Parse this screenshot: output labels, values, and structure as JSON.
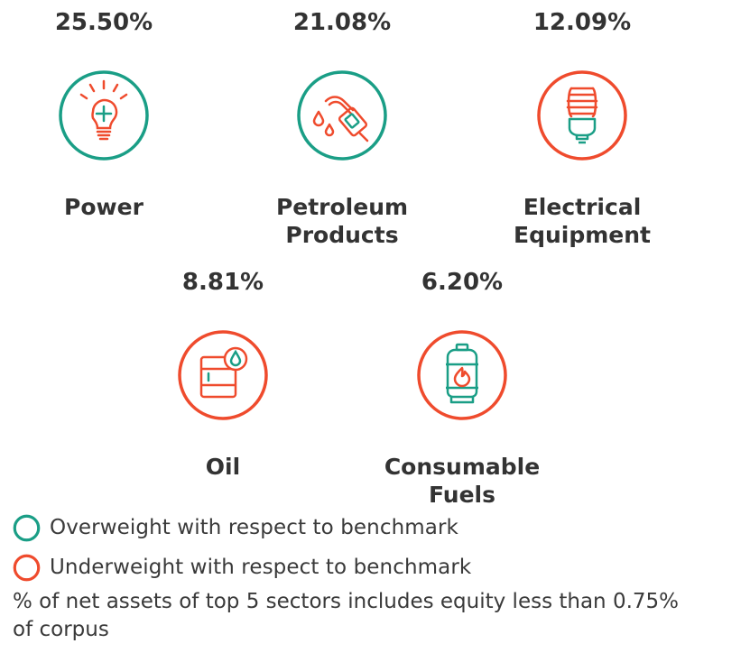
{
  "colors": {
    "overweight": "#1a9e86",
    "underweight": "#ef4b2d"
  },
  "sectors": [
    {
      "percent": "25.50%",
      "name": "Power",
      "icon": "lightbulb-icon",
      "weight": "overweight"
    },
    {
      "percent": "21.08%",
      "name": "Petroleum Products",
      "icon": "fuel-nozzle-icon",
      "weight": "overweight"
    },
    {
      "percent": "12.09%",
      "name": "Electrical Equipment",
      "icon": "cfl-bulb-icon",
      "weight": "underweight"
    },
    {
      "percent": "8.81%",
      "name": "Oil",
      "icon": "oil-barrel-icon",
      "weight": "underweight"
    },
    {
      "percent": "6.20%",
      "name": "Consumable Fuels",
      "icon": "gas-cylinder-icon",
      "weight": "underweight"
    }
  ],
  "legend": {
    "overweight": "Overweight with respect to benchmark",
    "underweight": "Underweight with respect to benchmark"
  },
  "footnote": "% of net assets of top 5 sectors includes equity less than 0.75% of corpus"
}
